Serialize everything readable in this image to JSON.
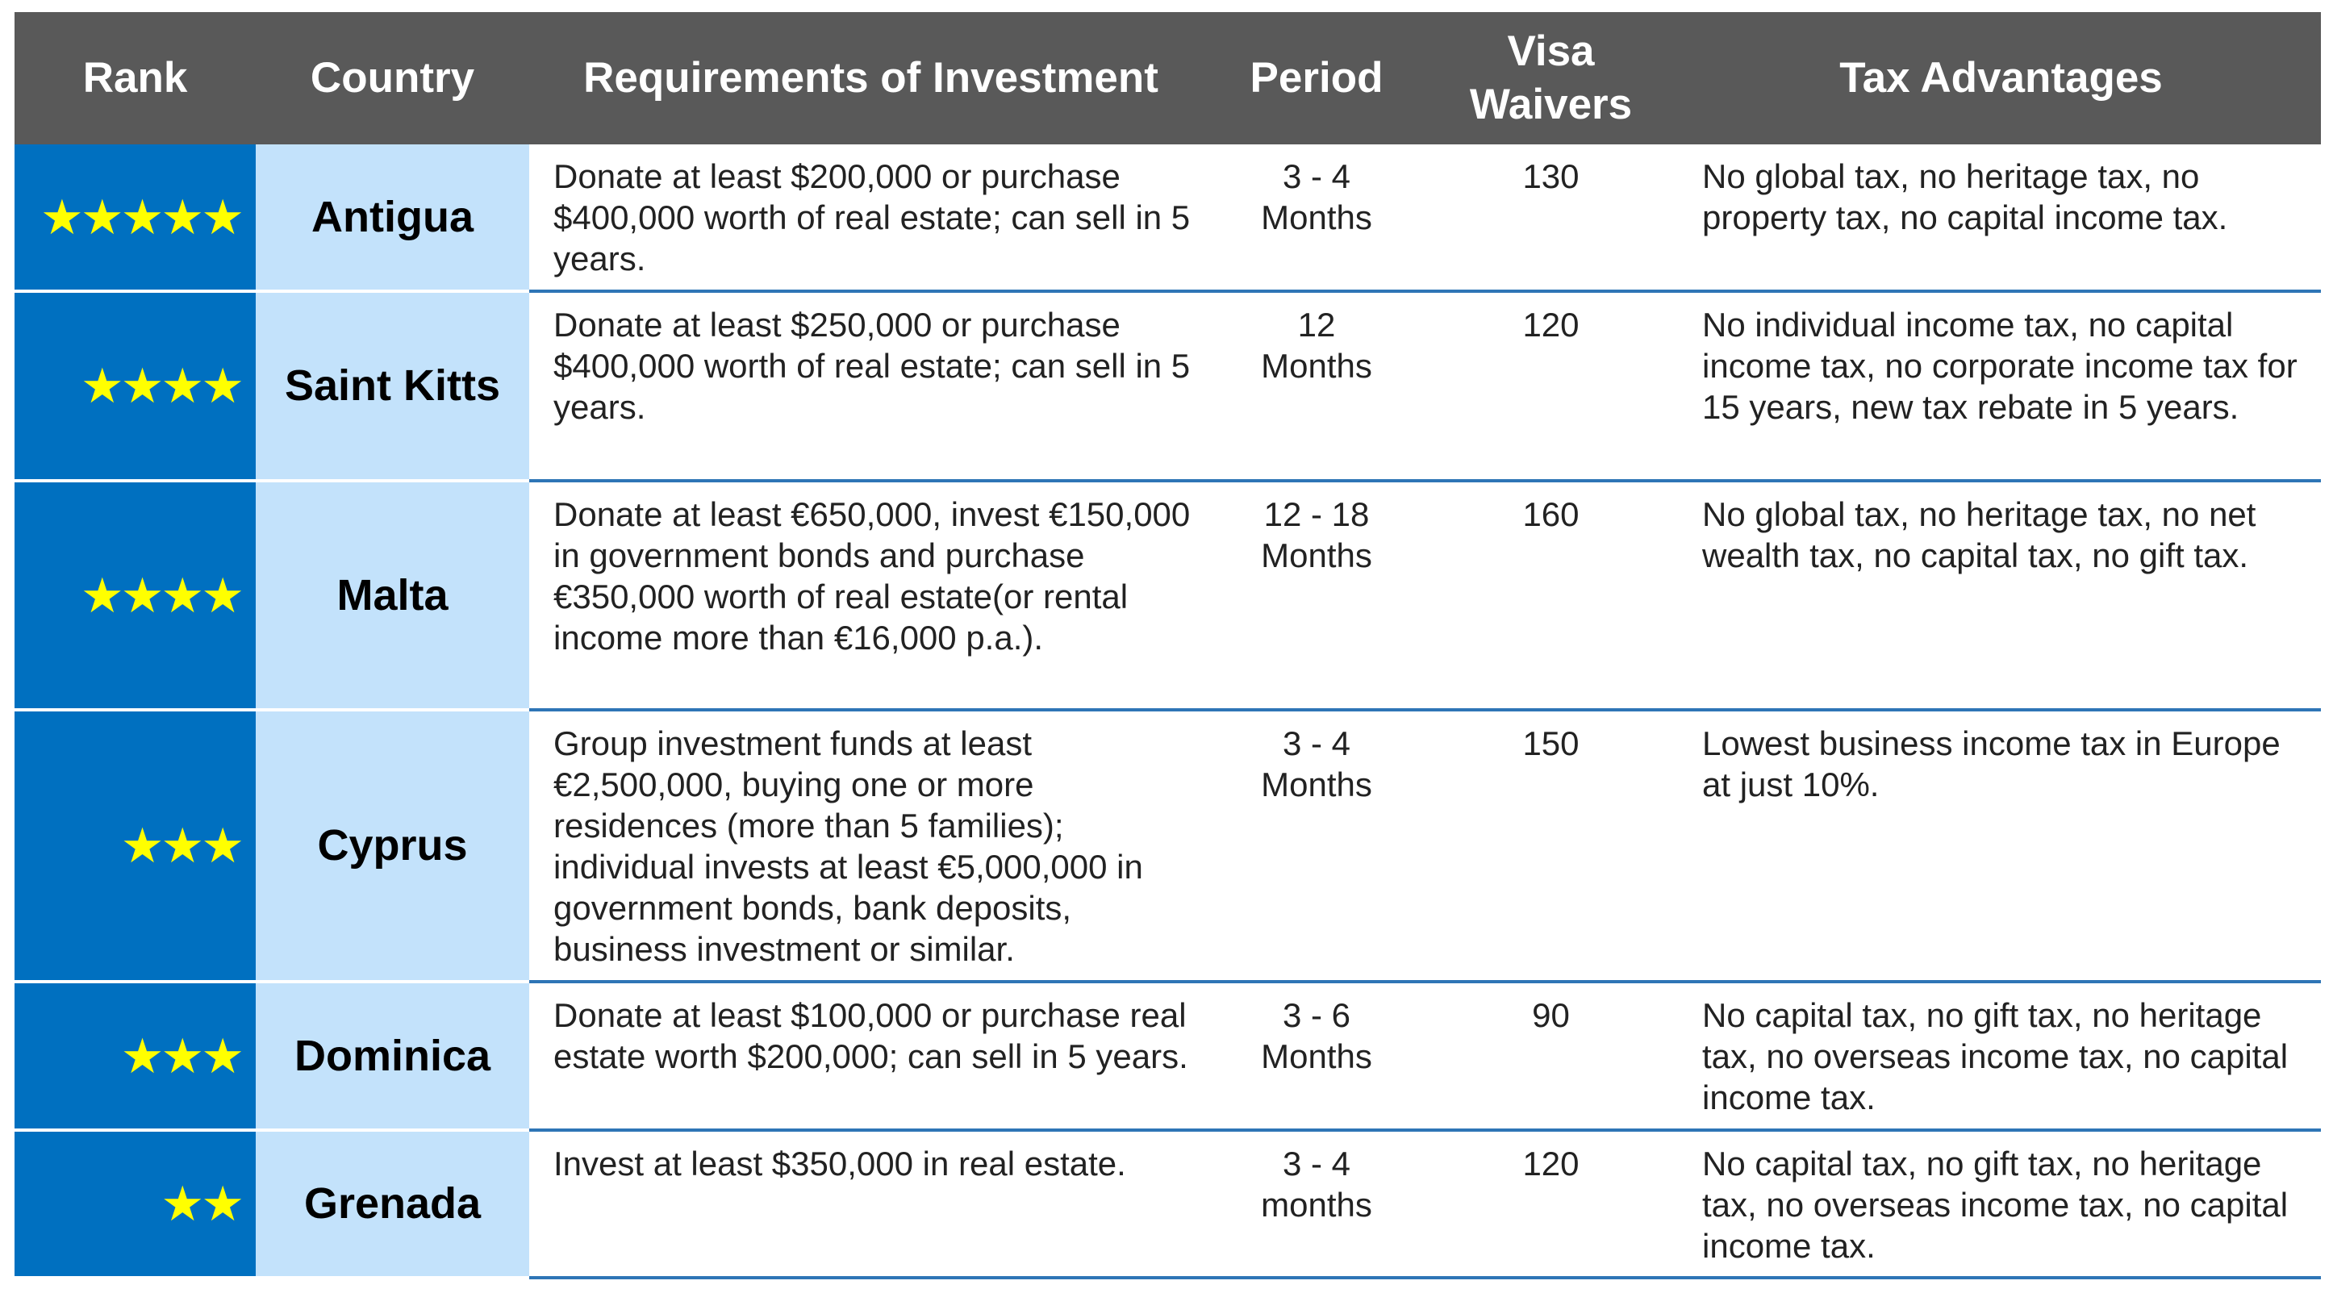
{
  "table": {
    "header": [
      "Rank",
      "Country",
      "Requirements of Investment",
      "Period",
      "Visa Waivers",
      "Tax Advantages"
    ],
    "rows": [
      [
        "★★★★★",
        "Antigua",
        "Donate at least $200,000 or purchase $400,000 worth of real estate; can sell in 5 years.",
        "3 - 4 Months",
        "130",
        "No global tax, no heritage tax, no property tax, no capital income tax."
      ],
      [
        "★★★★",
        "Saint Kitts",
        "Donate at least $250,000 or purchase $400,000 worth of real estate; can sell in 5 years.",
        "12 Months",
        "120",
        "No individual income tax, no capital income tax, no corporate income tax for 15 years, new tax rebate in 5 years."
      ],
      [
        "★★★★",
        "Malta",
        "Donate at least €650,000, invest €150,000 in government bonds and purchase €350,000 worth of real estate(or rental income more than €16,000 p.a.).",
        "12 - 18 Months",
        "160",
        "No global tax, no heritage tax, no net wealth tax, no capital tax, no gift tax."
      ],
      [
        "★★★",
        "Cyprus",
        "Group investment funds at least €2,500,000, buying one or more residences (more than 5 families); individual invests at least €5,000,000 in government bonds, bank deposits, business investment or similar.",
        "3 - 4 Months",
        "150",
        "Lowest business income tax in Europe at just 10%."
      ],
      [
        "★★★",
        "Dominica",
        "Donate at least $100,000 or purchase real estate worth $200,000; can sell in 5 years.",
        "3 - 6 Months",
        "90",
        "No capital tax, no gift tax, no heritage tax, no overseas income tax, no capital income tax."
      ],
      [
        "★★",
        "Grenada",
        "Invest at least $350,000 in real estate.",
        "3 - 4 months",
        "120",
        "No capital tax, no gift tax, no heritage tax, no overseas income tax, no capital income tax."
      ]
    ]
  }
}
